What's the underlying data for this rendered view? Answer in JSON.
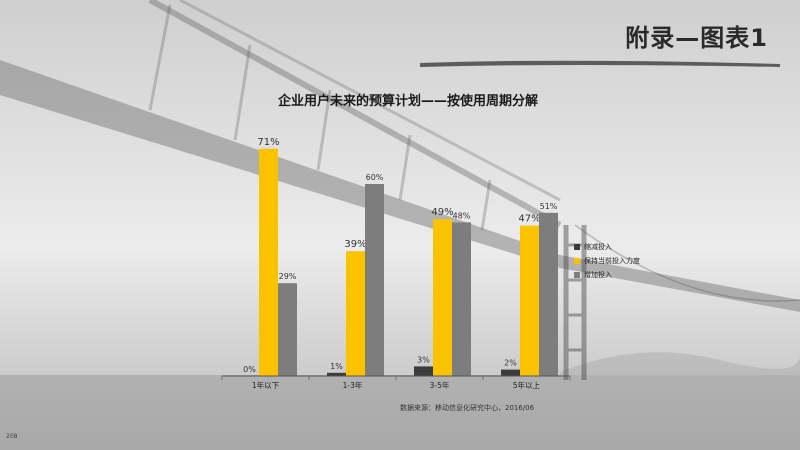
{
  "slide": {
    "title": "附录—图表1",
    "source": "数据来源：移动信息化研究中心，2016/06",
    "page_number": "208"
  },
  "colors": {
    "series_dark": "#3c3c3c",
    "series_yellow": "#fbc200",
    "series_gray": "#7d7d7d"
  },
  "chart_data": {
    "type": "bar",
    "title": "企业用户未来的预算计划——按使用周期分解",
    "xlabel": "",
    "ylabel": "",
    "categories": [
      "1年以下",
      "1-3年",
      "3-5年",
      "5年以上"
    ],
    "series": [
      {
        "name": "缩减投入",
        "values": [
          0,
          1,
          3,
          2
        ]
      },
      {
        "name": "保持当前投入力度",
        "values": [
          71,
          39,
          49,
          47
        ]
      },
      {
        "name": "增加投入",
        "values": [
          29,
          60,
          48,
          51
        ]
      }
    ],
    "value_suffix": "%",
    "ylim": [
      0,
      80
    ],
    "grid": false,
    "legend_position": "right"
  }
}
